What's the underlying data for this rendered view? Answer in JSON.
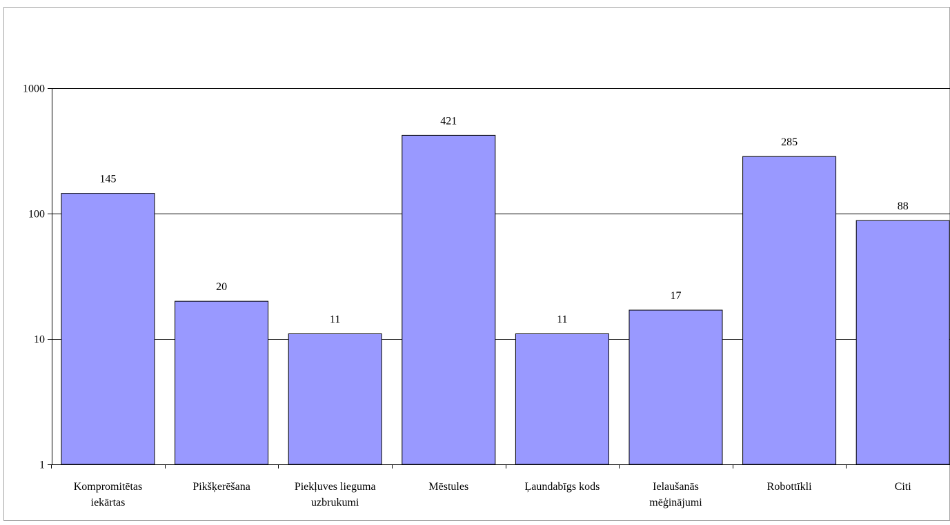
{
  "chart_data": {
    "type": "bar",
    "scale": "log",
    "ylim": [
      1,
      1000
    ],
    "yticks": [
      {
        "value": 1,
        "label": "1"
      },
      {
        "value": 10,
        "label": "10"
      },
      {
        "value": 100,
        "label": "100"
      },
      {
        "value": 1000,
        "label": "1000"
      }
    ],
    "categories": [
      [
        "Kompromitētas",
        "iekārtas"
      ],
      [
        "Pikšķerēšana"
      ],
      [
        "Piekļuves lieguma",
        "uzbrukumi"
      ],
      [
        "Mēstules"
      ],
      [
        "Ļaundabīgs kods"
      ],
      [
        "Ielaušanās",
        "mēģinājumi"
      ],
      [
        "Robottīkli"
      ],
      [
        "Citi"
      ]
    ],
    "values": [
      145,
      20,
      11,
      421,
      11,
      17,
      285,
      88
    ],
    "value_labels": [
      "145",
      "20",
      "11",
      "421",
      "11",
      "17",
      "285",
      "88"
    ],
    "grid": true,
    "legend": false,
    "colors": {
      "bar_fill": "#9999ff",
      "bar_stroke": "#000000",
      "grid": "#000000",
      "background": "#ffffff",
      "frame": "#a6a6a6"
    }
  }
}
